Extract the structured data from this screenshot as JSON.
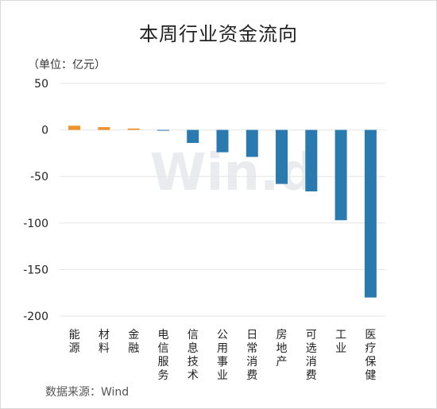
{
  "title": "本周行业资金流向",
  "unit_label": "（单位：亿元）",
  "source": "数据来源：Wind",
  "watermark": "Win.d",
  "colors": {
    "positive": "#f0922b",
    "negative": "#2a7ab0",
    "grid": "#e6e6e6"
  },
  "chart_data": {
    "type": "bar",
    "title": "本周行业资金流向",
    "ylabel": "（单位：亿元）",
    "xlabel": "",
    "ylim": [
      -200,
      50
    ],
    "yticks": [
      50,
      0,
      -50,
      -100,
      -150,
      -200
    ],
    "grid": true,
    "categories": [
      "能源",
      "材料",
      "金融",
      "电信服务",
      "信息技术",
      "公用事业",
      "日常消费",
      "房地产",
      "可选消费",
      "工业",
      "医疗保健"
    ],
    "values": [
      4.5,
      3,
      1.5,
      -0.5,
      -14,
      -24,
      -29,
      -58,
      -66,
      -97,
      -180
    ]
  }
}
